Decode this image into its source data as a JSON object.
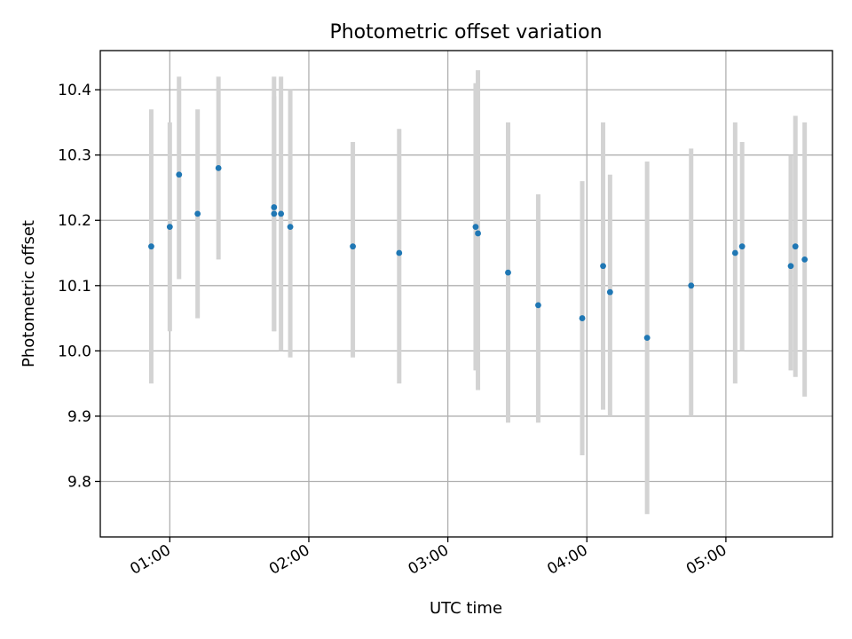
{
  "chart_data": {
    "type": "scatter",
    "title": "Photometric offset variation",
    "xlabel": "UTC time",
    "ylabel": "Photometric offset",
    "xlim": [
      "00:30",
      "05:46"
    ],
    "ylim": [
      9.715,
      10.46
    ],
    "x_ticks": [
      "01:00",
      "02:00",
      "03:00",
      "04:00",
      "05:00"
    ],
    "y_ticks": [
      "9.8",
      "9.9",
      "10.0",
      "10.1",
      "10.2",
      "10.3",
      "10.4"
    ],
    "grid": true,
    "series": [
      {
        "marker_color": "#1f77b4",
        "errorbar_color": "#d3d3d3",
        "points": [
          {
            "x": "00:52",
            "y": 10.16,
            "ylow": 9.95,
            "yhigh": 10.37
          },
          {
            "x": "01:00",
            "y": 10.19,
            "ylow": 10.03,
            "yhigh": 10.35
          },
          {
            "x": "01:04",
            "y": 10.27,
            "ylow": 10.11,
            "yhigh": 10.42
          },
          {
            "x": "01:12",
            "y": 10.21,
            "ylow": 10.05,
            "yhigh": 10.37
          },
          {
            "x": "01:21",
            "y": 10.28,
            "ylow": 10.14,
            "yhigh": 10.42
          },
          {
            "x": "01:45",
            "y": 10.21,
            "ylow": 10.03,
            "yhigh": 10.39
          },
          {
            "x": "01:45",
            "y": 10.22,
            "ylow": 10.03,
            "yhigh": 10.42
          },
          {
            "x": "01:48",
            "y": 10.21,
            "ylow": 10.0,
            "yhigh": 10.42
          },
          {
            "x": "01:52",
            "y": 10.19,
            "ylow": 9.99,
            "yhigh": 10.4
          },
          {
            "x": "02:19",
            "y": 10.16,
            "ylow": 9.99,
            "yhigh": 10.32
          },
          {
            "x": "02:39",
            "y": 10.15,
            "ylow": 9.95,
            "yhigh": 10.34
          },
          {
            "x": "03:12",
            "y": 10.19,
            "ylow": 9.97,
            "yhigh": 10.41
          },
          {
            "x": "03:13",
            "y": 10.18,
            "ylow": 9.94,
            "yhigh": 10.43
          },
          {
            "x": "03:26",
            "y": 10.12,
            "ylow": 9.89,
            "yhigh": 10.35
          },
          {
            "x": "03:39",
            "y": 10.07,
            "ylow": 9.89,
            "yhigh": 10.24
          },
          {
            "x": "03:58",
            "y": 10.05,
            "ylow": 9.84,
            "yhigh": 10.26
          },
          {
            "x": "04:07",
            "y": 10.13,
            "ylow": 9.91,
            "yhigh": 10.35
          },
          {
            "x": "04:10",
            "y": 10.09,
            "ylow": 9.9,
            "yhigh": 10.27
          },
          {
            "x": "04:26",
            "y": 10.02,
            "ylow": 9.75,
            "yhigh": 10.29
          },
          {
            "x": "04:45",
            "y": 10.1,
            "ylow": 9.9,
            "yhigh": 10.31
          },
          {
            "x": "05:04",
            "y": 10.15,
            "ylow": 9.95,
            "yhigh": 10.35
          },
          {
            "x": "05:07",
            "y": 10.16,
            "ylow": 10.0,
            "yhigh": 10.32
          },
          {
            "x": "05:28",
            "y": 10.13,
            "ylow": 9.97,
            "yhigh": 10.3
          },
          {
            "x": "05:30",
            "y": 10.16,
            "ylow": 9.96,
            "yhigh": 10.36
          },
          {
            "x": "05:34",
            "y": 10.14,
            "ylow": 9.93,
            "yhigh": 10.35
          }
        ]
      }
    ]
  }
}
